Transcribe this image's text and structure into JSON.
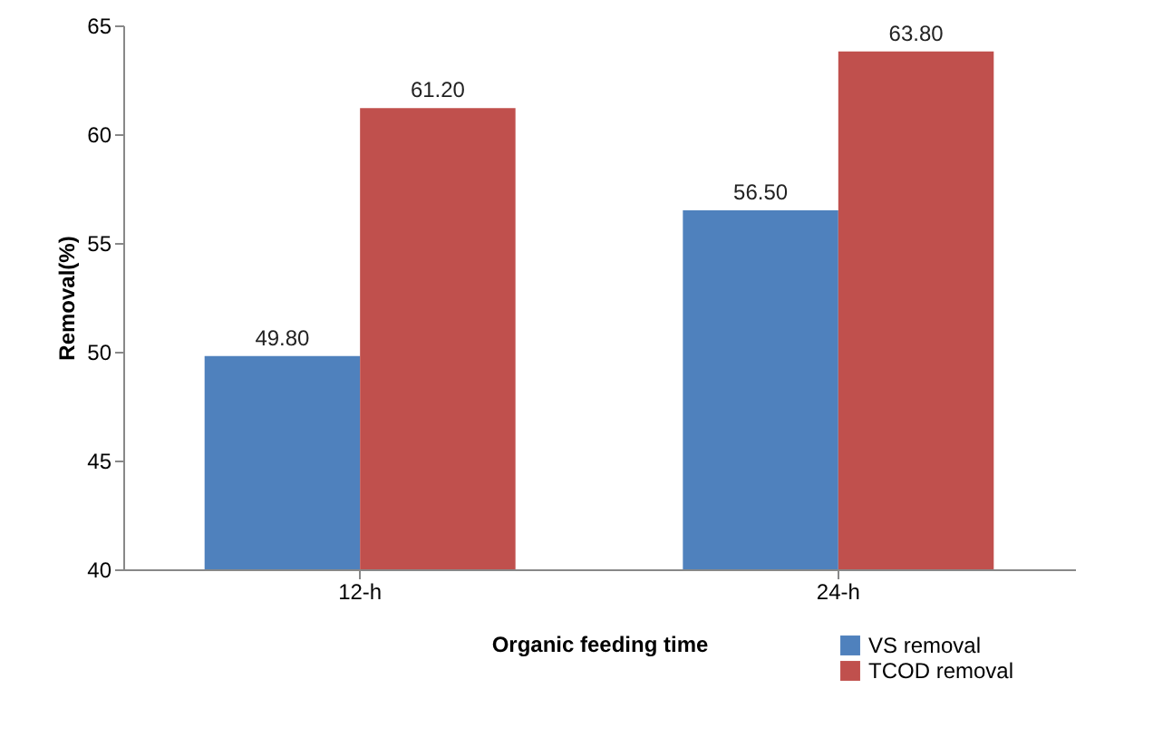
{
  "chart_data": {
    "type": "bar",
    "categories": [
      "12-h",
      "24-h"
    ],
    "series": [
      {
        "name": "VS removal",
        "color": "#4f81bd",
        "values": [
          49.8,
          56.5
        ],
        "value_labels": [
          "49.80",
          "56.50"
        ]
      },
      {
        "name": "TCOD removal",
        "color": "#c0504d",
        "values": [
          61.2,
          63.8
        ],
        "value_labels": [
          "61.20",
          "63.80"
        ]
      }
    ],
    "xlabel": "Organic feeding time",
    "ylabel": "Removal(%)",
    "ylim": [
      40,
      65
    ],
    "yticks": [
      40,
      45,
      50,
      55,
      60,
      65
    ],
    "grid": false,
    "legend": "bottom right"
  }
}
